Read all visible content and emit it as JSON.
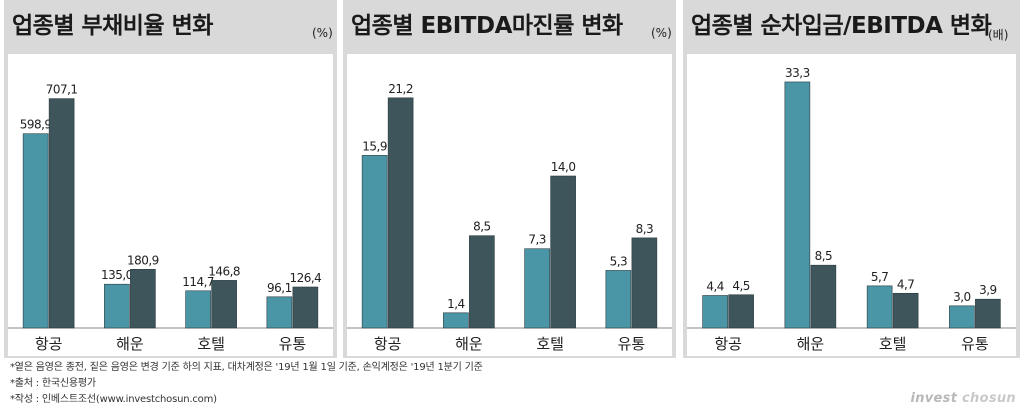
{
  "colors": {
    "series_2018": "#4a96a6",
    "series_2019": "#3e555c",
    "panel_bg": "#d9d9d9",
    "chart_bg": "#ffffff"
  },
  "chart_data": [
    {
      "type": "bar",
      "title": "업종별 부채비율 변화",
      "unit": "(%)",
      "categories": [
        "항공",
        "해운",
        "호텔",
        "유통"
      ],
      "series": [
        {
          "values": [
            598.9,
            135.0,
            114.7,
            96.1
          ],
          "labels": [
            "598,9",
            "135,0",
            "114,7",
            "96,1"
          ]
        },
        {
          "values": [
            707.1,
            180.9,
            146.8,
            126.4
          ],
          "labels": [
            "707,1",
            "180,9",
            "146,8",
            "126,4"
          ]
        }
      ],
      "ylim": [
        0,
        820
      ]
    },
    {
      "type": "bar",
      "title": "업종별 EBITDA마진률 변화",
      "unit": "(%)",
      "categories": [
        "항공",
        "해운",
        "호텔",
        "유통"
      ],
      "series": [
        {
          "values": [
            15.9,
            1.4,
            7.3,
            5.3
          ],
          "labels": [
            "15,9",
            "1,4",
            "7,3",
            "5,3"
          ]
        },
        {
          "values": [
            21.2,
            8.5,
            14.0,
            8.3
          ],
          "labels": [
            "21,2",
            "8,5",
            "14,0",
            "8,3"
          ]
        }
      ],
      "ylim": [
        0,
        24.5
      ]
    },
    {
      "type": "bar",
      "title": "업종별 순차입금/EBITDA 변화",
      "unit": "(배)",
      "categories": [
        "항공",
        "해운",
        "호텔",
        "유통"
      ],
      "series": [
        {
          "values": [
            4.4,
            33.3,
            5.7,
            3.0
          ],
          "labels": [
            "4,4",
            "33,3",
            "5,7",
            "3,0"
          ]
        },
        {
          "values": [
            4.5,
            8.5,
            4.7,
            3.9
          ],
          "labels": [
            "4,5",
            "8,5",
            "4,7",
            "3,9"
          ]
        }
      ],
      "ylim": [
        0,
        36
      ]
    }
  ],
  "notes": {
    "line1": "*옅은 음영은 종전, 짙은 음영은 변경 기준 하의 지표, 대차계정은 '19년 1월 1일 기준, 손익계정은 '19년 1분기 기준",
    "line2": "*출처 : 한국신용평가",
    "line3": "*작성 : 인베스트조선(www.investchosun.com)"
  },
  "brand": {
    "part1": "invest",
    "part2": "chosun"
  }
}
